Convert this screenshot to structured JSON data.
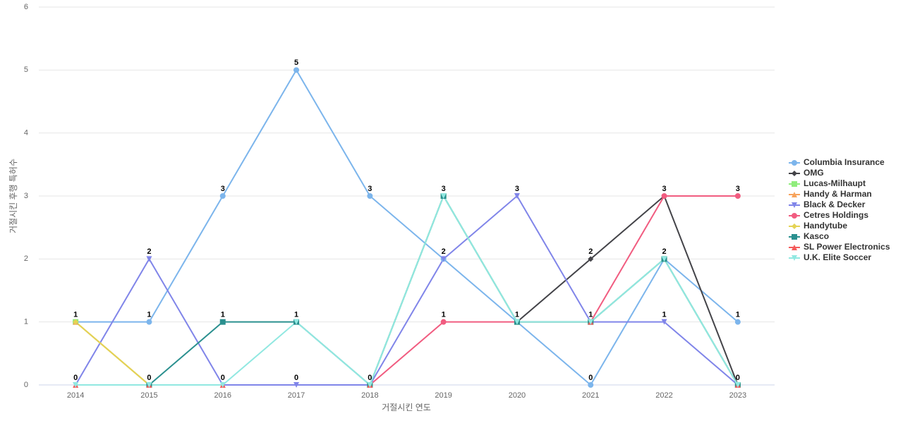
{
  "chart_data": {
    "type": "line",
    "x_label": "거절시킨 연도",
    "y_label": "거절시킨 후행 특허수",
    "categories": [
      "2014",
      "2015",
      "2016",
      "2017",
      "2018",
      "2019",
      "2020",
      "2021",
      "2022",
      "2023"
    ],
    "ylim": [
      0,
      6
    ],
    "yticks": [
      0,
      1,
      2,
      3,
      4,
      5,
      6
    ],
    "grid": true,
    "series": [
      {
        "name": "Columbia Insurance",
        "color": "#7cb5ec",
        "values": [
          1,
          1,
          3,
          5,
          3,
          2,
          1,
          0,
          2,
          1
        ]
      },
      {
        "name": "OMG",
        "color": "#434348",
        "values": [
          null,
          null,
          null,
          null,
          null,
          null,
          1,
          2,
          3,
          0
        ]
      },
      {
        "name": "Lucas-Milhaupt",
        "color": "#90ed7d",
        "values": [
          1,
          0,
          null,
          null,
          0,
          3,
          1,
          1,
          2,
          0
        ]
      },
      {
        "name": "Handy & Harman",
        "color": "#f7a35c",
        "values": [
          1,
          0,
          0,
          null,
          null,
          null,
          null,
          null,
          null,
          null
        ]
      },
      {
        "name": "Black & Decker",
        "color": "#8085e9",
        "values": [
          0,
          2,
          0,
          0,
          0,
          2,
          3,
          1,
          1,
          0
        ]
      },
      {
        "name": "Cetres Holdings",
        "color": "#f15c80",
        "values": [
          null,
          null,
          null,
          null,
          0,
          1,
          1,
          1,
          3,
          3
        ]
      },
      {
        "name": "Handytube",
        "color": "#e4d354",
        "values": [
          1,
          0,
          null,
          null,
          null,
          null,
          null,
          null,
          null,
          null
        ]
      },
      {
        "name": "Kasco",
        "color": "#2b908f",
        "values": [
          null,
          0,
          1,
          1,
          0,
          3,
          1,
          1,
          2,
          0
        ]
      },
      {
        "name": "SL Power Electronics",
        "color": "#f45b5b",
        "values": [
          0,
          0,
          0,
          null,
          0,
          null,
          null,
          1,
          null,
          0
        ]
      },
      {
        "name": "U.K. Elite Soccer",
        "color": "#91e8e1",
        "values": [
          0,
          0,
          0,
          1,
          0,
          3,
          1,
          1,
          2,
          0
        ]
      }
    ]
  }
}
